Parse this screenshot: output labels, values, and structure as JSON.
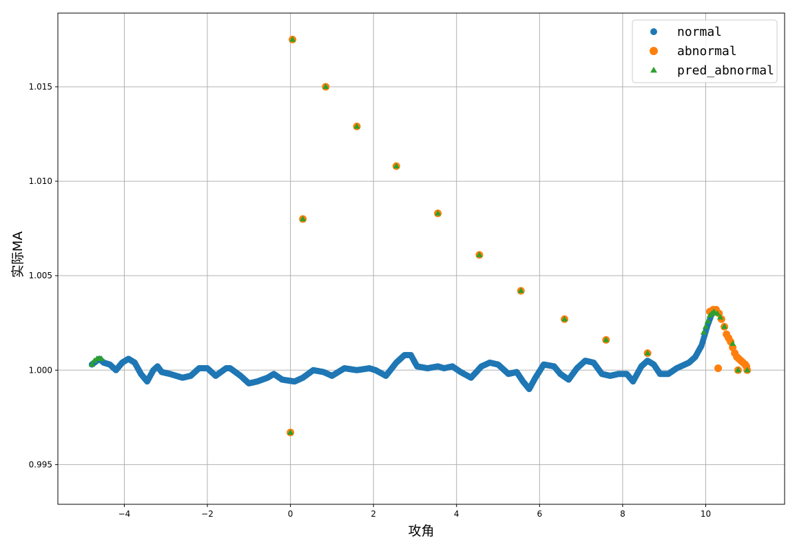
{
  "chart_data": {
    "type": "scatter",
    "xlabel": "攻角",
    "ylabel": "实际MA",
    "xlim": [
      -5.6,
      11.9
    ],
    "ylim": [
      0.9929,
      1.0189
    ],
    "xticks": [
      -4,
      -2,
      0,
      2,
      4,
      6,
      8,
      10
    ],
    "yticks": [
      0.995,
      1.0,
      1.005,
      1.01,
      1.015
    ],
    "ytick_labels": [
      "0.995",
      "1.000",
      "1.005",
      "1.010",
      "1.015"
    ],
    "grid": true,
    "legend_position": "top-right",
    "series": [
      {
        "name": "normal",
        "marker": "circle",
        "color": "#1f77b4",
        "anchors": [
          [
            -4.78,
            1.0003
          ],
          [
            -4.6,
            1.0006
          ],
          [
            -4.5,
            1.0004
          ],
          [
            -4.35,
            1.0003
          ],
          [
            -4.2,
            1.0
          ],
          [
            -4.05,
            1.0004
          ],
          [
            -3.9,
            1.0006
          ],
          [
            -3.75,
            1.0004
          ],
          [
            -3.6,
            0.9998
          ],
          [
            -3.45,
            0.9994
          ],
          [
            -3.3,
            1.0
          ],
          [
            -3.2,
            1.0002
          ],
          [
            -3.1,
            0.9999
          ],
          [
            -2.9,
            0.9998
          ],
          [
            -2.6,
            0.9996
          ],
          [
            -2.4,
            0.9997
          ],
          [
            -2.2,
            1.0001
          ],
          [
            -2.0,
            1.0001
          ],
          [
            -1.8,
            0.9997
          ],
          [
            -1.55,
            1.0001
          ],
          [
            -1.45,
            1.0001
          ],
          [
            -1.2,
            0.9997
          ],
          [
            -1.0,
            0.9993
          ],
          [
            -0.8,
            0.9994
          ],
          [
            -0.55,
            0.9996
          ],
          [
            -0.4,
            0.9998
          ],
          [
            -0.2,
            0.9995
          ],
          [
            0.1,
            0.9994
          ],
          [
            0.3,
            0.9996
          ],
          [
            0.55,
            1.0
          ],
          [
            0.8,
            0.9999
          ],
          [
            1.0,
            0.9997
          ],
          [
            1.3,
            1.0001
          ],
          [
            1.6,
            1.0
          ],
          [
            1.9,
            1.0001
          ],
          [
            2.05,
            1.0
          ],
          [
            2.3,
            0.9997
          ],
          [
            2.55,
            1.0004
          ],
          [
            2.75,
            1.0008
          ],
          [
            2.9,
            1.0008
          ],
          [
            3.05,
            1.0002
          ],
          [
            3.3,
            1.0001
          ],
          [
            3.55,
            1.0002
          ],
          [
            3.7,
            1.0001
          ],
          [
            3.9,
            1.0002
          ],
          [
            4.1,
            0.9999
          ],
          [
            4.35,
            0.9996
          ],
          [
            4.6,
            1.0002
          ],
          [
            4.8,
            1.0004
          ],
          [
            5.0,
            1.0003
          ],
          [
            5.25,
            0.9998
          ],
          [
            5.45,
            0.9999
          ],
          [
            5.6,
            0.9994
          ],
          [
            5.75,
            0.999
          ],
          [
            5.9,
            0.9996
          ],
          [
            6.1,
            1.0003
          ],
          [
            6.35,
            1.0002
          ],
          [
            6.5,
            0.9998
          ],
          [
            6.7,
            0.9995
          ],
          [
            6.9,
            1.0001
          ],
          [
            7.1,
            1.0005
          ],
          [
            7.3,
            1.0004
          ],
          [
            7.5,
            0.9998
          ],
          [
            7.7,
            0.9997
          ],
          [
            7.9,
            0.9998
          ],
          [
            8.1,
            0.9998
          ],
          [
            8.25,
            0.9994
          ],
          [
            8.45,
            1.0002
          ],
          [
            8.6,
            1.0005
          ],
          [
            8.75,
            1.0003
          ],
          [
            8.9,
            0.9998
          ],
          [
            9.1,
            0.9998
          ],
          [
            9.3,
            1.0001
          ],
          [
            9.6,
            1.0004
          ],
          [
            9.75,
            1.0007
          ],
          [
            9.9,
            1.0013
          ],
          [
            10.05,
            1.0024
          ],
          [
            10.15,
            1.003
          ]
        ]
      },
      {
        "name": "abnormal",
        "marker": "circle",
        "color": "#ff7f0e",
        "points": [
          [
            0.05,
            1.0175
          ],
          [
            0.85,
            1.015
          ],
          [
            1.6,
            1.0129
          ],
          [
            2.55,
            1.0108
          ],
          [
            0.3,
            1.008
          ],
          [
            3.55,
            1.0083
          ],
          [
            4.55,
            1.0061
          ],
          [
            5.55,
            1.0042
          ],
          [
            6.6,
            1.0027
          ],
          [
            7.6,
            1.0016
          ],
          [
            8.6,
            1.0009
          ],
          [
            0.0,
            0.9967
          ],
          [
            10.1,
            1.0031
          ],
          [
            10.18,
            1.0032
          ],
          [
            10.25,
            1.0032
          ],
          [
            10.32,
            1.003
          ],
          [
            10.38,
            1.0027
          ],
          [
            10.45,
            1.0023
          ],
          [
            10.5,
            1.0019
          ],
          [
            10.55,
            1.0017
          ],
          [
            10.6,
            1.0015
          ],
          [
            10.65,
            1.0012
          ],
          [
            10.7,
            1.0009
          ],
          [
            10.75,
            1.0007
          ],
          [
            10.8,
            1.0006
          ],
          [
            10.85,
            1.0005
          ],
          [
            10.9,
            1.0004
          ],
          [
            10.95,
            1.0003
          ],
          [
            10.98,
            1.0002
          ],
          [
            10.3,
            1.0001
          ],
          [
            10.78,
            1.0
          ],
          [
            11.0,
            1.0
          ]
        ]
      },
      {
        "name": "pred_abnormal",
        "marker": "triangle",
        "color": "#2ca02c",
        "points": [
          [
            0.05,
            1.0175
          ],
          [
            0.85,
            1.015
          ],
          [
            1.6,
            1.0129
          ],
          [
            2.55,
            1.0108
          ],
          [
            0.3,
            1.008
          ],
          [
            3.55,
            1.0083
          ],
          [
            4.55,
            1.0061
          ],
          [
            5.55,
            1.0042
          ],
          [
            6.6,
            1.0027
          ],
          [
            7.6,
            1.0016
          ],
          [
            8.6,
            1.0009
          ],
          [
            0.0,
            0.9967
          ],
          [
            -4.78,
            1.0003
          ],
          [
            -4.72,
            1.0005
          ],
          [
            -4.66,
            1.0006
          ],
          [
            -4.6,
            1.0006
          ],
          [
            -4.55,
            1.0006
          ],
          [
            9.95,
            1.002
          ],
          [
            10.0,
            1.0023
          ],
          [
            10.05,
            1.0026
          ],
          [
            10.1,
            1.0029
          ],
          [
            10.15,
            1.003
          ],
          [
            10.2,
            1.0031
          ],
          [
            10.28,
            1.003
          ],
          [
            10.35,
            1.0028
          ],
          [
            10.45,
            1.0023
          ],
          [
            10.65,
            1.0014
          ],
          [
            10.78,
            1.0
          ],
          [
            11.0,
            1.0
          ]
        ]
      }
    ]
  }
}
